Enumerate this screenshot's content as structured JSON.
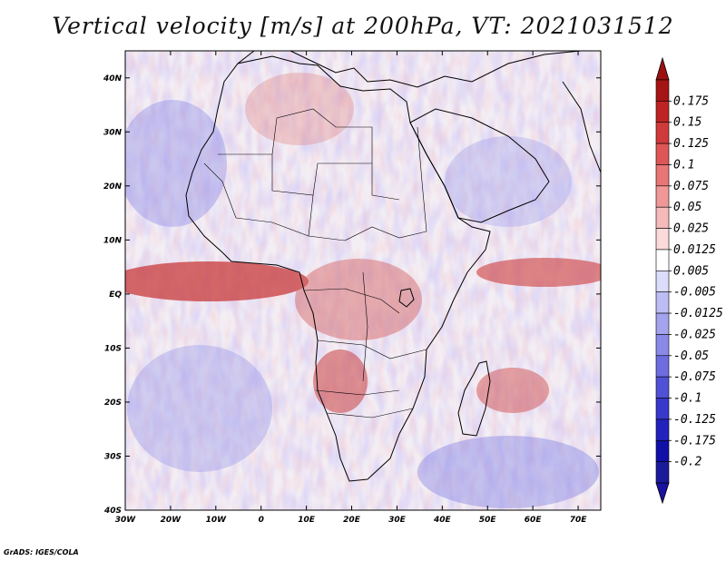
{
  "title": "Vertical velocity [m/s] at 200hPa, VT: 2021031512",
  "credit": "GrADS: IGES/COLA",
  "map": {
    "lat_range": [
      -40,
      45
    ],
    "lon_range": [
      -30,
      75
    ],
    "lat_ticks": [
      "40N",
      "30N",
      "20N",
      "10N",
      "EQ",
      "10S",
      "20S",
      "30S",
      "40S"
    ],
    "lon_ticks": [
      "30W",
      "20W",
      "10W",
      "0",
      "10E",
      "20E",
      "30E",
      "40E",
      "50E",
      "60E",
      "70E"
    ]
  },
  "colorbar": {
    "levels": [
      "0.175",
      "0.15",
      "0.125",
      "0.1",
      "0.075",
      "0.05",
      "0.025",
      "0.0125",
      "0.005",
      "-0.005",
      "-0.0125",
      "-0.025",
      "-0.05",
      "-0.075",
      "-0.1",
      "-0.125",
      "-0.175",
      "-0.2"
    ],
    "colors": [
      "#a51515",
      "#bf2424",
      "#d13a3a",
      "#df5656",
      "#e87676",
      "#f09898",
      "#f6baba",
      "#fbdada",
      "#ffffff",
      "#dcdcfb",
      "#bdbdf5",
      "#a3a3ee",
      "#8989e7",
      "#6d6de0",
      "#5151d6",
      "#3838cc",
      "#2222bd",
      "#1010a8",
      "#1a1a9a"
    ],
    "top_color": "#9c1010",
    "bottom_color": "#1a12a0"
  }
}
